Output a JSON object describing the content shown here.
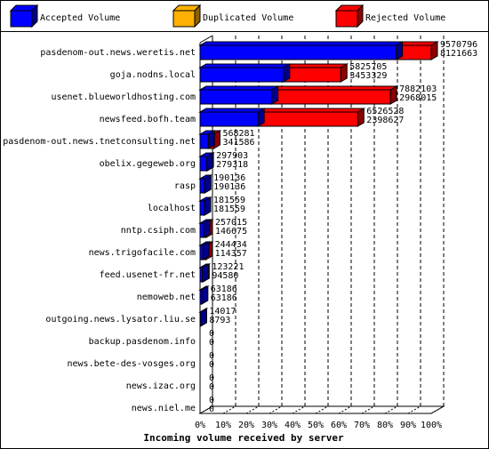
{
  "chart_data": {
    "type": "bar3d",
    "xlabel": "Incoming volume received by server",
    "categories": [
      "pasdenom-out.news.weretis.net",
      "goja.nodns.local",
      "usenet.blueworldhosting.com",
      "newsfeed.bofh.team",
      "pasdenom-out.news.tnetconsulting.net",
      "obelix.gegeweb.org",
      "rasp",
      "localhost",
      "nntp.csiph.com",
      "news.trigofacile.com",
      "feed.usenet-fr.net",
      "nemoweb.net",
      "outgoing.news.lysator.liu.se",
      "backup.pasdenom.info",
      "news.bete-des-vosges.org",
      "news.izac.org",
      "news.niel.me"
    ],
    "totals": [
      9570796,
      5825705,
      7882103,
      6526528,
      568281,
      297903,
      190136,
      181559,
      257015,
      244434,
      123221,
      63186,
      14017,
      0,
      0,
      0,
      0
    ],
    "series": [
      {
        "name": "Accepted Volume",
        "color": "#0000ff",
        "values": [
          8121663,
          3453329,
          2968015,
          2398627,
          341586,
          279318,
          190136,
          181559,
          146675,
          114357,
          94580,
          63186,
          8793,
          0,
          0,
          0,
          0
        ]
      },
      {
        "name": "Duplicated Volume",
        "color": "#ffb000"
      },
      {
        "name": "Rejected Volume",
        "color": "#ff0000"
      }
    ],
    "xlim": [
      0,
      100
    ],
    "xticks": [
      {
        "value": 0,
        "label": "0%"
      },
      {
        "value": 10,
        "label": "10%"
      },
      {
        "value": 20,
        "label": "20%"
      },
      {
        "value": 30,
        "label": "30%"
      },
      {
        "value": 40,
        "label": "40%"
      },
      {
        "value": 50,
        "label": "50%"
      },
      {
        "value": 60,
        "label": "60%"
      },
      {
        "value": 70,
        "label": "70%"
      },
      {
        "value": 80,
        "label": "80%"
      },
      {
        "value": 90,
        "label": "90%"
      },
      {
        "value": 100,
        "label": "100%"
      }
    ],
    "grid": true
  }
}
